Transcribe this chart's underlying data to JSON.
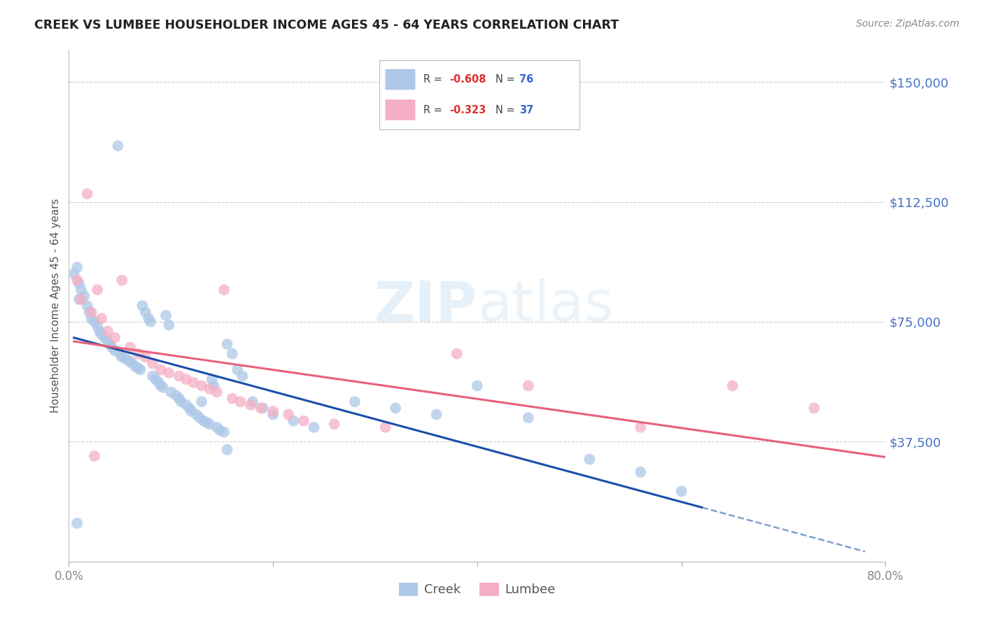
{
  "title": "CREEK VS LUMBEE HOUSEHOLDER INCOME AGES 45 - 64 YEARS CORRELATION CHART",
  "source": "Source: ZipAtlas.com",
  "ylabel": "Householder Income Ages 45 - 64 years",
  "xlim": [
    0.0,
    0.8
  ],
  "ylim": [
    0,
    160000
  ],
  "yticks": [
    0,
    37500,
    75000,
    112500,
    150000
  ],
  "ytick_labels": [
    "",
    "$37,500",
    "$75,000",
    "$112,500",
    "$150,000"
  ],
  "xticks": [
    0.0,
    0.2,
    0.4,
    0.6,
    0.8
  ],
  "xtick_labels": [
    "0.0%",
    "",
    "",
    "",
    "80.0%"
  ],
  "creek_color": "#adc8e8",
  "lumbee_color": "#f5afc4",
  "creek_line_color": "#1a4faa",
  "lumbee_line_color": "#e8607a",
  "creek_R": -0.608,
  "creek_N": 76,
  "lumbee_R": -0.323,
  "lumbee_N": 37,
  "creek_x": [
    0.005,
    0.008,
    0.01,
    0.01,
    0.012,
    0.015,
    0.018,
    0.02,
    0.022,
    0.025,
    0.028,
    0.03,
    0.032,
    0.035,
    0.038,
    0.04,
    0.042,
    0.045,
    0.048,
    0.05,
    0.052,
    0.055,
    0.058,
    0.06,
    0.062,
    0.065,
    0.068,
    0.07,
    0.072,
    0.075,
    0.078,
    0.08,
    0.082,
    0.085,
    0.088,
    0.09,
    0.092,
    0.095,
    0.098,
    0.1,
    0.105,
    0.108,
    0.11,
    0.115,
    0.118,
    0.12,
    0.125,
    0.128,
    0.132,
    0.135,
    0.138,
    0.14,
    0.142,
    0.145,
    0.148,
    0.152,
    0.155,
    0.16,
    0.165,
    0.17,
    0.18,
    0.19,
    0.2,
    0.22,
    0.24,
    0.28,
    0.32,
    0.36,
    0.4,
    0.45,
    0.51,
    0.56,
    0.6,
    0.13,
    0.155,
    0.008
  ],
  "creek_y": [
    90000,
    92000,
    87000,
    82000,
    85000,
    83000,
    80000,
    78000,
    76000,
    75000,
    73500,
    72000,
    71000,
    70000,
    69000,
    68000,
    67000,
    66000,
    130000,
    65000,
    64000,
    63500,
    63000,
    62500,
    62000,
    61000,
    60500,
    60000,
    80000,
    78000,
    76000,
    75000,
    58000,
    57000,
    56000,
    55000,
    54500,
    77000,
    74000,
    53000,
    52000,
    51000,
    50000,
    49000,
    48000,
    47000,
    46000,
    45000,
    44000,
    43500,
    43000,
    57000,
    55000,
    42000,
    41000,
    40500,
    68000,
    65000,
    60000,
    58000,
    50000,
    48000,
    46000,
    44000,
    42000,
    50000,
    48000,
    46000,
    55000,
    45000,
    32000,
    28000,
    22000,
    50000,
    35000,
    12000
  ],
  "lumbee_x": [
    0.008,
    0.012,
    0.018,
    0.022,
    0.028,
    0.032,
    0.038,
    0.045,
    0.052,
    0.06,
    0.068,
    0.075,
    0.082,
    0.09,
    0.098,
    0.108,
    0.115,
    0.122,
    0.13,
    0.138,
    0.145,
    0.152,
    0.16,
    0.168,
    0.178,
    0.188,
    0.2,
    0.215,
    0.23,
    0.26,
    0.31,
    0.38,
    0.45,
    0.56,
    0.65,
    0.73,
    0.025
  ],
  "lumbee_y": [
    88000,
    82000,
    115000,
    78000,
    85000,
    76000,
    72000,
    70000,
    88000,
    67000,
    65000,
    64000,
    62000,
    60000,
    59000,
    58000,
    57000,
    56000,
    55000,
    54000,
    53000,
    85000,
    51000,
    50000,
    49000,
    48000,
    47000,
    46000,
    44000,
    43000,
    42000,
    65000,
    55000,
    42000,
    55000,
    48000,
    33000
  ]
}
